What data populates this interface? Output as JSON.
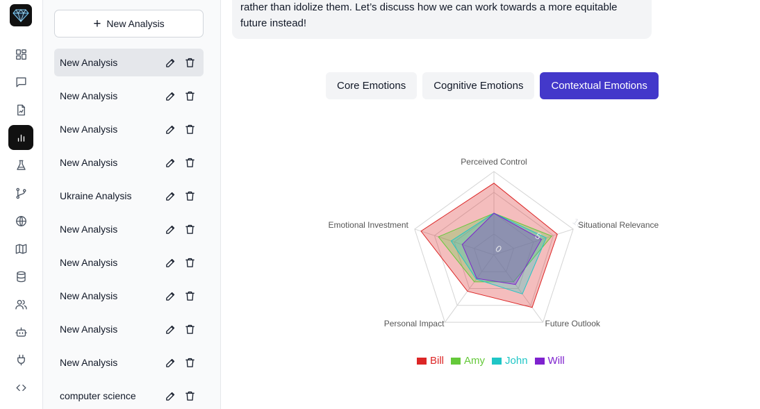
{
  "rail": {
    "items": [
      {
        "name": "dashboard-icon"
      },
      {
        "name": "chat-icon"
      },
      {
        "name": "document-icon"
      },
      {
        "name": "chart-icon",
        "active": true
      },
      {
        "name": "flask-icon"
      },
      {
        "name": "git-branch-icon"
      },
      {
        "name": "globe-icon"
      },
      {
        "name": "map-icon"
      },
      {
        "name": "database-icon"
      },
      {
        "name": "users-icon"
      },
      {
        "name": "bot-icon"
      },
      {
        "name": "plug-icon"
      },
      {
        "name": "code-icon"
      }
    ]
  },
  "sidebar": {
    "new_button": "New Analysis",
    "items": [
      {
        "label": "New Analysis",
        "active": true
      },
      {
        "label": "New Analysis"
      },
      {
        "label": "New Analysis"
      },
      {
        "label": "New Analysis"
      },
      {
        "label": "Ukraine Analysis"
      },
      {
        "label": "New Analysis"
      },
      {
        "label": "New Analysis"
      },
      {
        "label": "New Analysis"
      },
      {
        "label": "New Analysis"
      },
      {
        "label": "New Analysis"
      },
      {
        "label": "computer science"
      }
    ]
  },
  "message": {
    "line1": "rather than idolize them. Let’s discuss how we can work towards a more equitable",
    "line2": "future instead!"
  },
  "tabs": [
    {
      "label": "Core Emotions"
    },
    {
      "label": "Cognitive Emotions"
    },
    {
      "label": "Contextual Emotions",
      "active": true
    }
  ],
  "chart_data": {
    "type": "radar",
    "axes": [
      "Perceived Control",
      "Situational Relevance",
      "Future Outlook",
      "Personal Impact",
      "Emotional Investment"
    ],
    "rlim": [
      0,
      10
    ],
    "ticks": [
      "0",
      "5",
      "10"
    ],
    "grid": true,
    "legend_position": "bottom",
    "series": [
      {
        "name": "Bill",
        "color": "#dc2626",
        "values": [
          8.6,
          8.0,
          7.8,
          5.4,
          9.2
        ]
      },
      {
        "name": "Amy",
        "color": "#65c93a",
        "values": [
          5.0,
          7.3,
          4.0,
          4.0,
          7.0
        ]
      },
      {
        "name": "John",
        "color": "#1fc6c6",
        "values": [
          5.0,
          6.6,
          5.8,
          3.6,
          5.4
        ]
      },
      {
        "name": "Will",
        "color": "#7e22ce",
        "values": [
          5.0,
          6.0,
          4.4,
          3.5,
          4.0
        ]
      }
    ]
  }
}
